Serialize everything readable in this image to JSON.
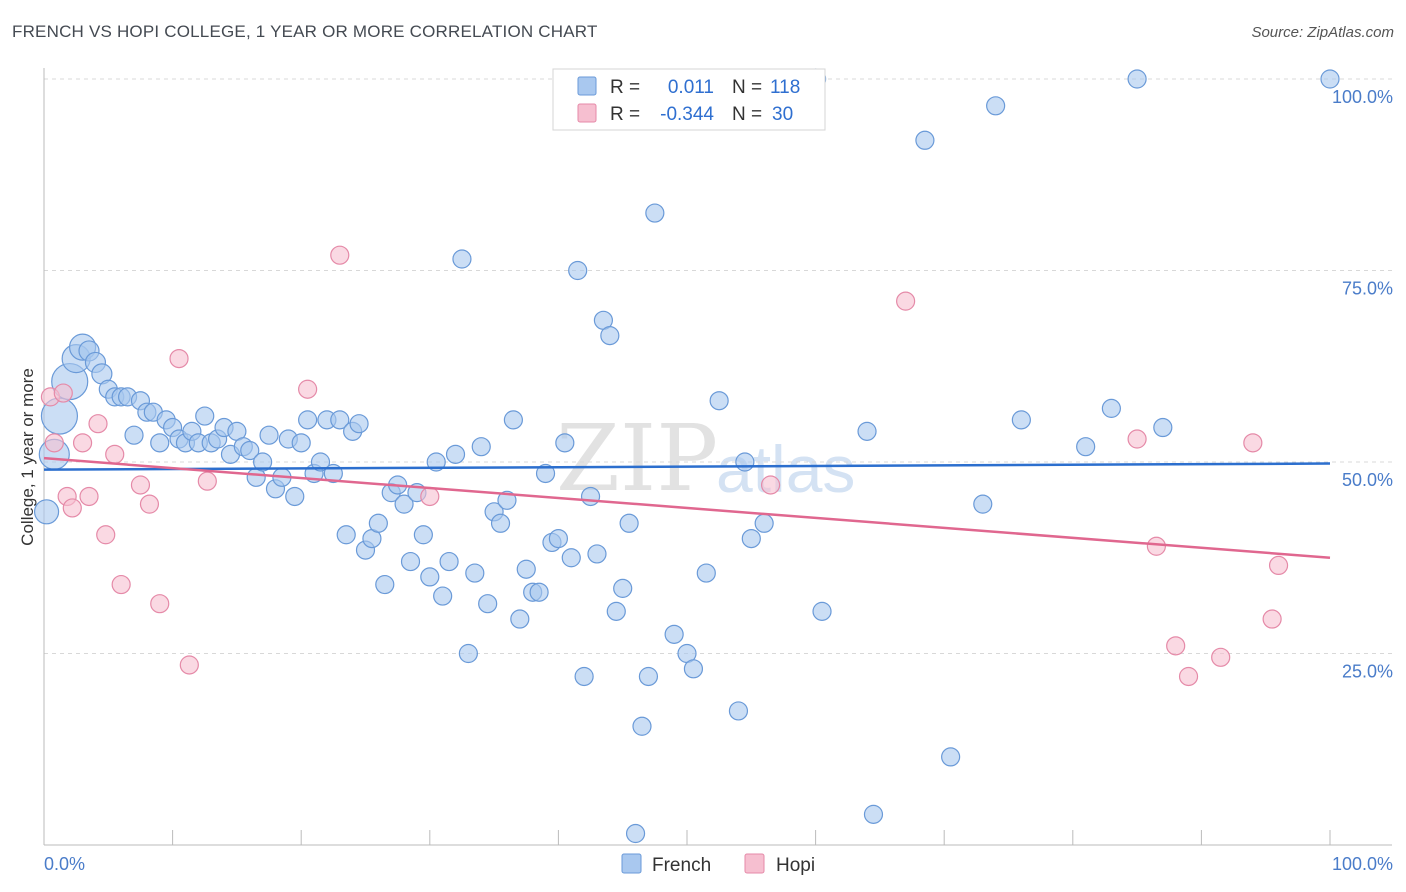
{
  "title": "FRENCH VS HOPI COLLEGE, 1 YEAR OR MORE CORRELATION CHART",
  "source": "Source: ZipAtlas.com",
  "watermark": {
    "zip": "ZIP",
    "atlas": "atlas"
  },
  "legend": {
    "french": {
      "r_label": "R =",
      "r_value": "0.011",
      "n_label": "N =",
      "n_value": "118"
    },
    "hopi": {
      "r_label": "R =",
      "r_value": "-0.344",
      "n_label": "N =",
      "n_value": "30"
    }
  },
  "colors": {
    "french_fill": "#a9c8ef",
    "french_stroke": "#6a9ad8",
    "french_line": "#2c6fce",
    "hopi_fill": "#f6bfd0",
    "hopi_stroke": "#e58aa8",
    "hopi_line": "#e0678f",
    "tick_text": "#4a7cc9",
    "grid": "#d8d8d8"
  },
  "chart_data": {
    "type": "scatter",
    "title": "FRENCH VS HOPI COLLEGE, 1 YEAR OR MORE CORRELATION CHART",
    "xlabel": "",
    "ylabel": "College, 1 year or more",
    "xlim": [
      0,
      100
    ],
    "ylim": [
      0,
      100
    ],
    "x_tick_labels": [
      "0.0%",
      "100.0%"
    ],
    "y_ticks": [
      25,
      50,
      75,
      100
    ],
    "y_tick_labels": [
      "25.0%",
      "50.0%",
      "75.0%",
      "100.0%"
    ],
    "series": [
      {
        "name": "French",
        "trend": {
          "start": [
            0,
            49.0
          ],
          "end": [
            100,
            49.8
          ]
        },
        "points": [
          [
            0.2,
            43.5,
            12
          ],
          [
            0.8,
            51,
            15
          ],
          [
            1.2,
            56,
            18
          ],
          [
            2,
            60.5,
            18
          ],
          [
            2.5,
            63.5,
            14
          ],
          [
            3,
            65,
            13
          ],
          [
            3.5,
            64.5,
            10
          ],
          [
            4,
            63,
            10
          ],
          [
            4.5,
            61.5,
            10
          ],
          [
            5,
            59.5,
            9
          ],
          [
            5.5,
            58.5,
            9
          ],
          [
            6,
            58.5,
            9
          ],
          [
            6.5,
            58.5,
            9
          ],
          [
            7,
            53.5,
            9
          ],
          [
            7.5,
            58,
            9
          ],
          [
            8,
            56.5,
            9
          ],
          [
            8.5,
            56.5,
            9
          ],
          [
            9,
            52.5,
            9
          ],
          [
            9.5,
            55.5,
            9
          ],
          [
            10,
            54.5,
            9
          ],
          [
            10.5,
            53,
            9
          ],
          [
            11,
            52.5,
            9
          ],
          [
            11.5,
            54,
            9
          ],
          [
            12,
            52.5,
            9
          ],
          [
            12.5,
            56,
            9
          ],
          [
            13,
            52.5,
            9
          ],
          [
            13.5,
            53,
            9
          ],
          [
            14,
            54.5,
            9
          ],
          [
            14.5,
            51,
            9
          ],
          [
            15,
            54,
            9
          ],
          [
            15.5,
            52,
            9
          ],
          [
            16,
            51.5,
            9
          ],
          [
            16.5,
            48,
            9
          ],
          [
            17,
            50,
            9
          ],
          [
            17.5,
            53.5,
            9
          ],
          [
            18,
            46.5,
            9
          ],
          [
            18.5,
            48,
            9
          ],
          [
            19,
            53,
            9
          ],
          [
            19.5,
            45.5,
            9
          ],
          [
            20,
            52.5,
            9
          ],
          [
            20.5,
            55.5,
            9
          ],
          [
            21,
            48.5,
            9
          ],
          [
            21.5,
            50,
            9
          ],
          [
            22,
            55.5,
            9
          ],
          [
            22.5,
            48.5,
            9
          ],
          [
            23,
            55.5,
            9
          ],
          [
            23.5,
            40.5,
            9
          ],
          [
            24,
            54,
            9
          ],
          [
            24.5,
            55,
            9
          ],
          [
            25,
            38.5,
            9
          ],
          [
            25.5,
            40,
            9
          ],
          [
            26,
            42,
            9
          ],
          [
            26.5,
            34,
            9
          ],
          [
            27,
            46,
            9
          ],
          [
            27.5,
            47,
            9
          ],
          [
            28,
            44.5,
            9
          ],
          [
            28.5,
            37,
            9
          ],
          [
            29,
            46,
            9
          ],
          [
            29.5,
            40.5,
            9
          ],
          [
            30,
            35,
            9
          ],
          [
            30.5,
            50,
            9
          ],
          [
            31,
            32.5,
            9
          ],
          [
            31.5,
            37,
            9
          ],
          [
            32,
            51,
            9
          ],
          [
            32.5,
            76.5,
            9
          ],
          [
            33,
            25,
            9
          ],
          [
            33.5,
            35.5,
            9
          ],
          [
            34,
            52,
            9
          ],
          [
            34.5,
            31.5,
            9
          ],
          [
            35,
            43.5,
            9
          ],
          [
            35.5,
            42,
            9
          ],
          [
            36,
            45,
            9
          ],
          [
            36.5,
            55.5,
            9
          ],
          [
            37,
            29.5,
            9
          ],
          [
            37.5,
            36,
            9
          ],
          [
            38,
            33,
            9
          ],
          [
            38.5,
            33,
            9
          ],
          [
            39,
            48.5,
            9
          ],
          [
            39.5,
            39.5,
            9
          ],
          [
            40,
            40,
            9
          ],
          [
            40.5,
            52.5,
            9
          ],
          [
            41,
            37.5,
            9
          ],
          [
            41.5,
            75,
            9
          ],
          [
            42,
            22,
            9
          ],
          [
            42.5,
            45.5,
            9
          ],
          [
            43,
            38,
            9
          ],
          [
            43.5,
            68.5,
            9
          ],
          [
            44,
            66.5,
            9
          ],
          [
            44.5,
            30.5,
            9
          ],
          [
            45,
            33.5,
            9
          ],
          [
            45.5,
            42,
            9
          ],
          [
            46,
            1.5,
            9
          ],
          [
            46.5,
            15.5,
            9
          ],
          [
            47,
            22,
            9
          ],
          [
            47.5,
            82.5,
            9
          ],
          [
            49,
            27.5,
            9
          ],
          [
            50,
            25,
            9
          ],
          [
            50.5,
            23,
            9
          ],
          [
            51.5,
            35.5,
            9
          ],
          [
            52.5,
            58,
            9
          ],
          [
            54,
            17.5,
            9
          ],
          [
            54.5,
            50,
            9
          ],
          [
            55,
            40,
            9
          ],
          [
            56,
            42,
            9
          ],
          [
            60,
            100,
            10
          ],
          [
            60.5,
            30.5,
            9
          ],
          [
            64,
            54,
            9
          ],
          [
            64.5,
            4,
            9
          ],
          [
            68.5,
            92,
            9
          ],
          [
            70.5,
            11.5,
            9
          ],
          [
            73,
            44.5,
            9
          ],
          [
            74,
            96.5,
            9
          ],
          [
            76,
            55.5,
            9
          ],
          [
            81,
            52,
            9
          ],
          [
            83,
            57,
            9
          ],
          [
            85,
            100,
            9
          ],
          [
            87,
            54.5,
            9
          ],
          [
            100,
            100,
            9
          ]
        ]
      },
      {
        "name": "Hopi",
        "trend": {
          "start": [
            0,
            50.5
          ],
          "end": [
            100,
            37.5
          ]
        },
        "points": [
          [
            0.5,
            58.5,
            9
          ],
          [
            0.8,
            52.5,
            9
          ],
          [
            1.5,
            59,
            9
          ],
          [
            1.8,
            45.5,
            9
          ],
          [
            2.2,
            44,
            9
          ],
          [
            3.0,
            52.5,
            9
          ],
          [
            3.5,
            45.5,
            9
          ],
          [
            4.2,
            55,
            9
          ],
          [
            4.8,
            40.5,
            9
          ],
          [
            5.5,
            51,
            9
          ],
          [
            6,
            34,
            9
          ],
          [
            7.5,
            47,
            9
          ],
          [
            8.2,
            44.5,
            9
          ],
          [
            9,
            31.5,
            9
          ],
          [
            10.5,
            63.5,
            9
          ],
          [
            11.3,
            23.5,
            9
          ],
          [
            12.7,
            47.5,
            9
          ],
          [
            20.5,
            59.5,
            9
          ],
          [
            23,
            77,
            9
          ],
          [
            30,
            45.5,
            9
          ],
          [
            56.5,
            47,
            9
          ],
          [
            67,
            71,
            9
          ],
          [
            85,
            53,
            9
          ],
          [
            86.5,
            39,
            9
          ],
          [
            88,
            26,
            9
          ],
          [
            89,
            22,
            9
          ],
          [
            91.5,
            24.5,
            9
          ],
          [
            94,
            52.5,
            9
          ],
          [
            95.5,
            29.5,
            9
          ],
          [
            96,
            36.5,
            9
          ]
        ]
      }
    ]
  }
}
